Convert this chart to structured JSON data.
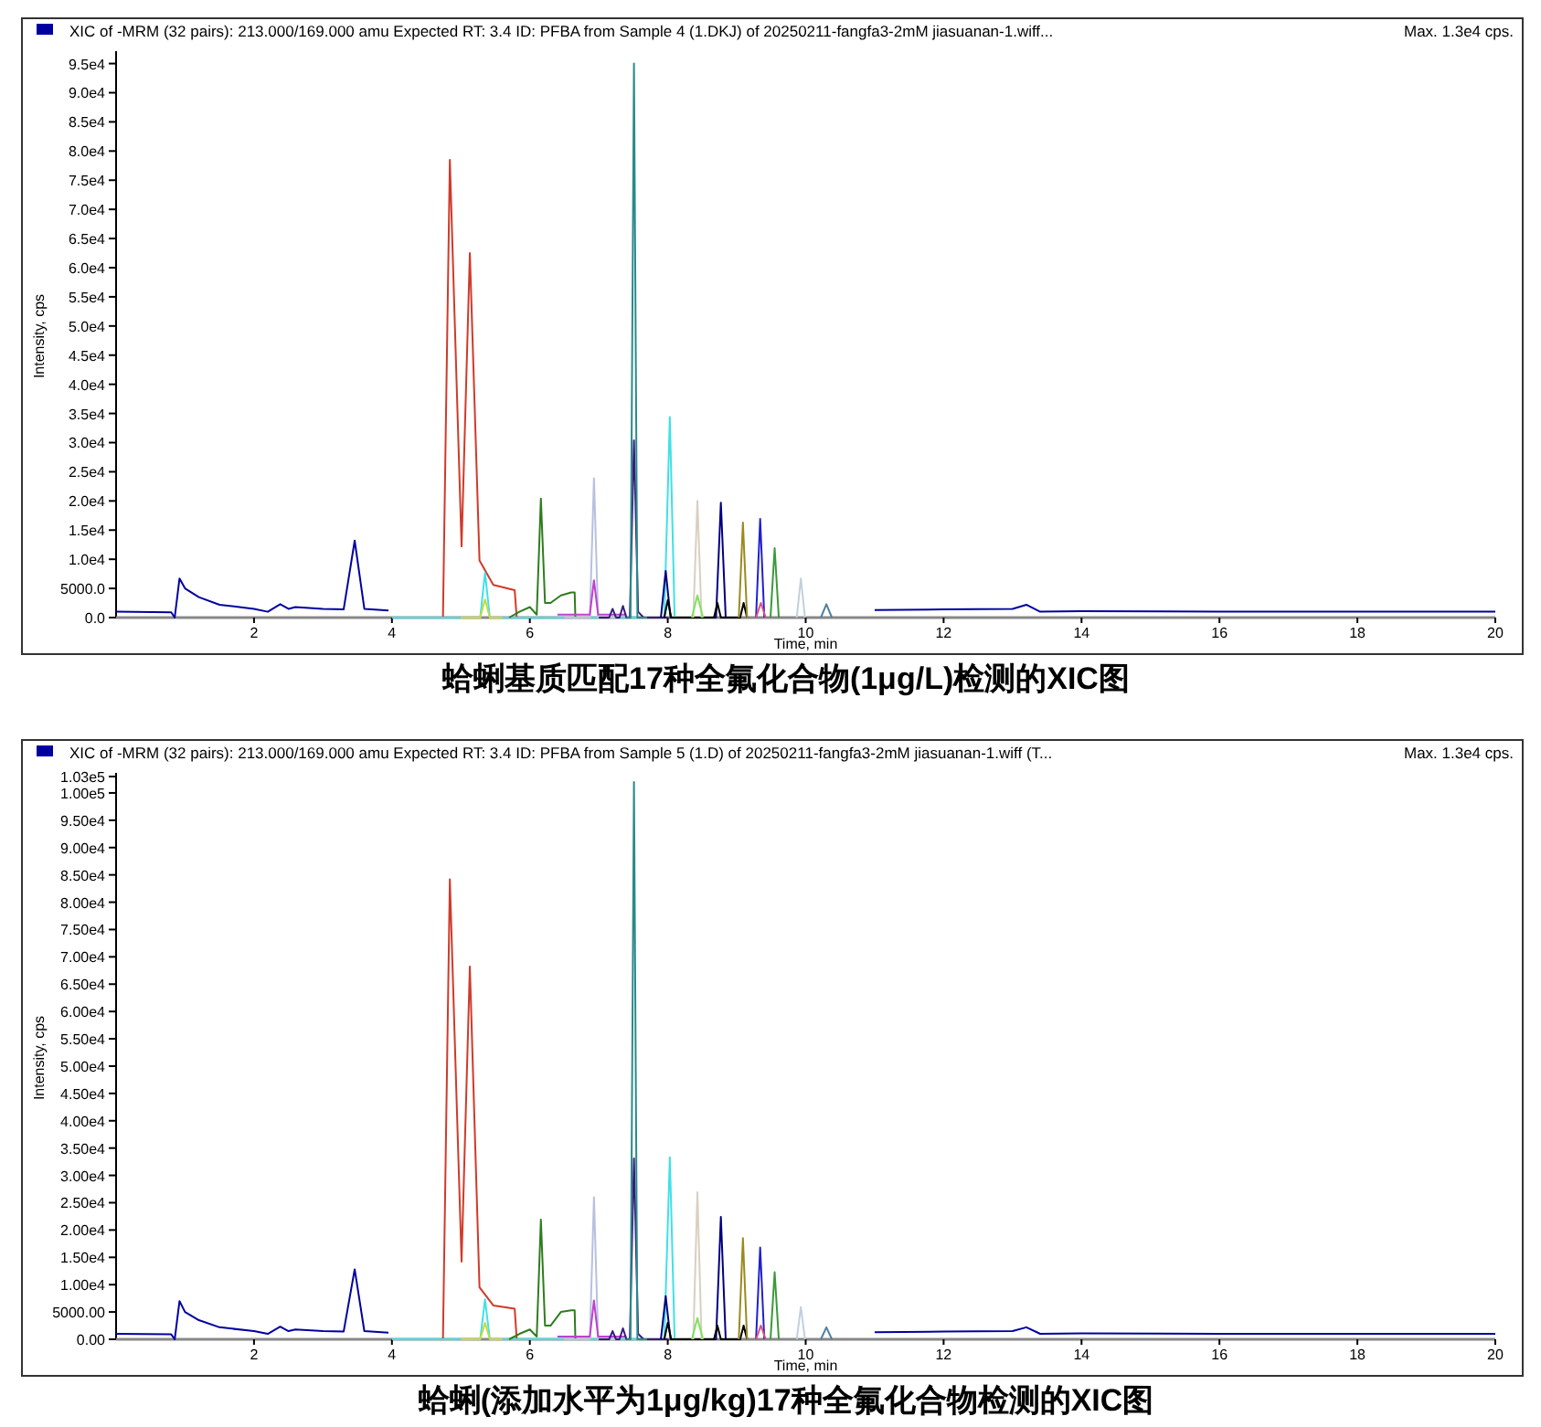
{
  "chart_data": [
    {
      "type": "line",
      "title": "蛤蜊基质匹配17种全氟化合物(1μg/L)检测的XIC图",
      "subtitle": "XIC of -MRM (32 pairs): 213.000/169.000 amu Expected RT: 3.4 ID: PFBA from Sample 4 (1.DKJ) of 20250211-fangfa3-2mM jiasuanan-1.wiff...",
      "annotations": [
        "Max. 1.3e4 cps."
      ],
      "xlabel": "Time, min",
      "ylabel": "Intensity, cps",
      "xlim": [
        0,
        20
      ],
      "xticks": [
        2,
        4,
        6,
        8,
        10,
        12,
        14,
        16,
        18,
        20
      ],
      "ylim": [
        0,
        96500
      ],
      "yticks": [
        {
          "value": 0,
          "label": "0.0"
        },
        {
          "value": 5000,
          "label": "5000.0"
        },
        {
          "value": 10000,
          "label": "1.0e4"
        },
        {
          "value": 15000,
          "label": "1.5e4"
        },
        {
          "value": 20000,
          "label": "2.0e4"
        },
        {
          "value": 25000,
          "label": "2.5e4"
        },
        {
          "value": 30000,
          "label": "3.0e4"
        },
        {
          "value": 35000,
          "label": "3.5e4"
        },
        {
          "value": 40000,
          "label": "4.0e4"
        },
        {
          "value": 45000,
          "label": "4.5e4"
        },
        {
          "value": 50000,
          "label": "5.0e4"
        },
        {
          "value": 55000,
          "label": "5.5e4"
        },
        {
          "value": 60000,
          "label": "6.0e4"
        },
        {
          "value": 65000,
          "label": "6.5e4"
        },
        {
          "value": 70000,
          "label": "7.0e4"
        },
        {
          "value": 75000,
          "label": "7.5e4"
        },
        {
          "value": 80000,
          "label": "8.0e4"
        },
        {
          "value": 85000,
          "label": "8.5e4"
        },
        {
          "value": 90000,
          "label": "9.0e4"
        },
        {
          "value": 95000,
          "label": "9.5e4"
        }
      ],
      "series": [
        {
          "color": "#0000a0",
          "x": [
            0,
            0.8,
            0.85,
            0.92,
            1.0,
            1.2,
            1.5,
            2.0,
            2.2,
            2.38,
            2.5,
            2.6,
            3.0,
            3.3,
            3.46,
            3.6,
            3.95
          ],
          "values": [
            1000,
            900,
            0,
            6700,
            5000,
            3500,
            2200,
            1500,
            1000,
            2300,
            1500,
            1800,
            1500,
            1400,
            13200,
            1500,
            1200
          ]
        },
        {
          "color": "#0000a0",
          "x": [
            11.0,
            12,
            13.0,
            13.2,
            13.4,
            14,
            16,
            18,
            20
          ],
          "values": [
            1300,
            1400,
            1500,
            2200,
            1000,
            1100,
            1000,
            1000,
            1000
          ]
        },
        {
          "color": "#d03a2a",
          "x": [
            4.74,
            4.84,
            5.01,
            5.13,
            5.27,
            5.47,
            5.78,
            5.81
          ],
          "values": [
            0,
            78500,
            12200,
            62500,
            9800,
            5600,
            4700,
            0
          ]
        },
        {
          "color": "#40e0e8",
          "x": [
            4.0,
            5.28,
            5.35,
            5.42,
            7.95,
            8.03,
            8.1,
            8.5
          ],
          "values": [
            0,
            0,
            7700,
            0,
            0,
            34400,
            0,
            0
          ]
        },
        {
          "color": "#c8d840",
          "x": [
            5.0,
            5.28,
            5.35,
            5.42,
            5.6
          ],
          "values": [
            0,
            0,
            3100,
            0,
            0
          ]
        },
        {
          "color": "#2e7d1e",
          "x": [
            5.7,
            5.85,
            6.0,
            6.1,
            6.16,
            6.22,
            6.3,
            6.45,
            6.6,
            6.65,
            6.66
          ],
          "values": [
            0,
            1000,
            1800,
            500,
            20400,
            2500,
            2500,
            3800,
            4300,
            4300,
            0
          ]
        },
        {
          "color": "#b8c0e0",
          "x": [
            6.5,
            6.87,
            6.93,
            6.99,
            7.3
          ],
          "values": [
            0,
            0,
            23900,
            0,
            0
          ]
        },
        {
          "color": "#c040d0",
          "x": [
            6.4,
            6.87,
            6.93,
            6.99,
            7.4
          ],
          "values": [
            500,
            500,
            6400,
            500,
            500
          ]
        },
        {
          "color": "#3a1a80",
          "x": [
            7.0,
            7.15,
            7.2,
            7.25,
            7.3,
            7.35,
            7.4,
            7.45,
            7.51,
            7.57,
            7.65,
            8.0
          ],
          "values": [
            0,
            0,
            1500,
            0,
            0,
            2000,
            0,
            0,
            30400,
            1000,
            0,
            0
          ]
        },
        {
          "color": "#2a8a8a",
          "x": [
            7.4,
            7.46,
            7.51,
            7.56,
            7.7
          ],
          "values": [
            0,
            0,
            95000,
            0,
            0
          ]
        },
        {
          "color": "#000080",
          "x": [
            7.9,
            7.97,
            8.04,
            8.7,
            8.77,
            8.84
          ],
          "values": [
            0,
            8000,
            0,
            0,
            19700,
            0
          ]
        },
        {
          "color": "#000000",
          "x": [
            7.95,
            8.0,
            8.05,
            8.67,
            8.72,
            8.77,
            9.05,
            9.1,
            9.15
          ],
          "values": [
            0,
            3000,
            0,
            0,
            2500,
            0,
            0,
            2500,
            0
          ]
        },
        {
          "color": "#d8d0c0",
          "x": [
            8.37,
            8.43,
            8.49
          ],
          "values": [
            0,
            20000,
            0
          ]
        },
        {
          "color": "#80e060",
          "x": [
            8.35,
            8.43,
            8.51
          ],
          "values": [
            0,
            3800,
            0
          ]
        },
        {
          "color": "#9a8a20",
          "x": [
            9.03,
            9.09,
            9.15
          ],
          "values": [
            0,
            16300,
            0
          ]
        },
        {
          "color": "#2020d0",
          "x": [
            9.28,
            9.34,
            9.4
          ],
          "values": [
            0,
            16900,
            0
          ]
        },
        {
          "color": "#e05080",
          "x": [
            9.28,
            9.35,
            9.42
          ],
          "values": [
            0,
            2500,
            0
          ]
        },
        {
          "color": "#3a9a3a",
          "x": [
            9.49,
            9.55,
            9.61
          ],
          "values": [
            0,
            11900,
            0
          ]
        },
        {
          "color": "#c0d0e0",
          "x": [
            9.87,
            9.93,
            9.99
          ],
          "values": [
            0,
            6700,
            0
          ]
        },
        {
          "color": "#5080a0",
          "x": [
            10.22,
            10.3,
            10.38
          ],
          "values": [
            0,
            2300,
            0
          ]
        }
      ]
    },
    {
      "type": "line",
      "title": "蛤蜊(添加水平为1μg/kg)17种全氟化合物检测的XIC图",
      "subtitle": "XIC of -MRM (32 pairs): 213.000/169.000 amu Expected RT: 3.4 ID: PFBA from Sample 5 (1.D) of 20250211-fangfa3-2mM jiasuanan-1.wiff (T...",
      "annotations": [
        "Max. 1.3e4 cps."
      ],
      "xlabel": "Time, min",
      "ylabel": "Intensity, cps",
      "xlim": [
        0,
        20
      ],
      "xticks": [
        2,
        4,
        6,
        8,
        10,
        12,
        14,
        16,
        18,
        20
      ],
      "ylim": [
        0,
        103000
      ],
      "yticks": [
        {
          "value": 0,
          "label": "0.00"
        },
        {
          "value": 5000,
          "label": "5000.00"
        },
        {
          "value": 10000,
          "label": "1.00e4"
        },
        {
          "value": 15000,
          "label": "1.50e4"
        },
        {
          "value": 20000,
          "label": "2.00e4"
        },
        {
          "value": 25000,
          "label": "2.50e4"
        },
        {
          "value": 30000,
          "label": "3.00e4"
        },
        {
          "value": 35000,
          "label": "3.50e4"
        },
        {
          "value": 40000,
          "label": "4.00e4"
        },
        {
          "value": 45000,
          "label": "4.50e4"
        },
        {
          "value": 50000,
          "label": "5.00e4"
        },
        {
          "value": 55000,
          "label": "5.50e4"
        },
        {
          "value": 60000,
          "label": "6.00e4"
        },
        {
          "value": 65000,
          "label": "6.50e4"
        },
        {
          "value": 70000,
          "label": "7.00e4"
        },
        {
          "value": 75000,
          "label": "7.50e4"
        },
        {
          "value": 80000,
          "label": "8.00e4"
        },
        {
          "value": 85000,
          "label": "8.50e4"
        },
        {
          "value": 90000,
          "label": "9.00e4"
        },
        {
          "value": 95000,
          "label": "9.50e4"
        },
        {
          "value": 100000,
          "label": "1.00e5"
        },
        {
          "value": 103000,
          "label": "1.03e5"
        }
      ],
      "series": [
        {
          "color": "#0000a0",
          "x": [
            0,
            0.8,
            0.85,
            0.92,
            1.0,
            1.2,
            1.5,
            2.0,
            2.2,
            2.38,
            2.5,
            2.6,
            3.0,
            3.3,
            3.46,
            3.6,
            3.95
          ],
          "values": [
            1000,
            900,
            0,
            7000,
            5000,
            3500,
            2200,
            1500,
            1000,
            2300,
            1500,
            1800,
            1500,
            1400,
            12800,
            1500,
            1200
          ]
        },
        {
          "color": "#0000a0",
          "x": [
            11.0,
            12,
            13.0,
            13.2,
            13.4,
            14,
            16,
            18,
            20
          ],
          "values": [
            1300,
            1400,
            1500,
            2200,
            1000,
            1100,
            1000,
            1000,
            1000
          ]
        },
        {
          "color": "#d03a2a",
          "x": [
            4.74,
            4.84,
            5.01,
            5.13,
            5.27,
            5.47,
            5.78,
            5.81
          ],
          "values": [
            0,
            84200,
            14200,
            68200,
            9500,
            6200,
            5600,
            0
          ]
        },
        {
          "color": "#40e0e8",
          "x": [
            4.0,
            5.28,
            5.35,
            5.42,
            7.95,
            8.03,
            8.1,
            8.5
          ],
          "values": [
            0,
            0,
            7300,
            0,
            0,
            33300,
            0,
            0
          ]
        },
        {
          "color": "#c8d840",
          "x": [
            5.0,
            5.28,
            5.35,
            5.42,
            5.6
          ],
          "values": [
            0,
            0,
            3000,
            0,
            0
          ]
        },
        {
          "color": "#2e7d1e",
          "x": [
            5.7,
            5.85,
            6.0,
            6.1,
            6.16,
            6.22,
            6.3,
            6.45,
            6.6,
            6.65,
            6.66
          ],
          "values": [
            0,
            1000,
            1800,
            500,
            21900,
            2500,
            2500,
            5000,
            5300,
            5300,
            0
          ]
        },
        {
          "color": "#b8c0e0",
          "x": [
            6.5,
            6.87,
            6.93,
            6.99,
            7.3
          ],
          "values": [
            0,
            0,
            26000,
            0,
            0
          ]
        },
        {
          "color": "#c040d0",
          "x": [
            6.4,
            6.87,
            6.93,
            6.99,
            7.4
          ],
          "values": [
            500,
            500,
            7100,
            500,
            500
          ]
        },
        {
          "color": "#3a1a80",
          "x": [
            7.0,
            7.15,
            7.2,
            7.25,
            7.3,
            7.35,
            7.4,
            7.45,
            7.51,
            7.57,
            7.65,
            8.0
          ],
          "values": [
            0,
            0,
            1500,
            0,
            0,
            2000,
            0,
            0,
            33100,
            1000,
            0,
            0
          ]
        },
        {
          "color": "#2a8a8a",
          "x": [
            7.4,
            7.46,
            7.51,
            7.56,
            7.7
          ],
          "values": [
            0,
            0,
            102000,
            0,
            0
          ]
        },
        {
          "color": "#000080",
          "x": [
            7.9,
            7.97,
            8.04,
            8.7,
            8.77,
            8.84
          ],
          "values": [
            0,
            7900,
            0,
            0,
            22400,
            0
          ]
        },
        {
          "color": "#000000",
          "x": [
            7.95,
            8.0,
            8.05,
            8.67,
            8.72,
            8.77,
            9.05,
            9.1,
            9.15
          ],
          "values": [
            0,
            3000,
            0,
            0,
            2500,
            0,
            0,
            2500,
            0
          ]
        },
        {
          "color": "#d8d0c0",
          "x": [
            8.37,
            8.43,
            8.49
          ],
          "values": [
            0,
            26900,
            0
          ]
        },
        {
          "color": "#80e060",
          "x": [
            8.35,
            8.43,
            8.51
          ],
          "values": [
            0,
            3900,
            0
          ]
        },
        {
          "color": "#9a8a20",
          "x": [
            9.03,
            9.09,
            9.15
          ],
          "values": [
            0,
            18500,
            0
          ]
        },
        {
          "color": "#2020d0",
          "x": [
            9.28,
            9.34,
            9.4
          ],
          "values": [
            0,
            16800,
            0
          ]
        },
        {
          "color": "#e05080",
          "x": [
            9.28,
            9.35,
            9.42
          ],
          "values": [
            0,
            2500,
            0
          ]
        },
        {
          "color": "#3a9a3a",
          "x": [
            9.49,
            9.55,
            9.61
          ],
          "values": [
            0,
            12300,
            0
          ]
        },
        {
          "color": "#c0d0e0",
          "x": [
            9.87,
            9.93,
            9.99
          ],
          "values": [
            0,
            5900,
            0
          ]
        },
        {
          "color": "#5080a0",
          "x": [
            10.22,
            10.3,
            10.38
          ],
          "values": [
            0,
            2200,
            0
          ]
        }
      ]
    }
  ]
}
